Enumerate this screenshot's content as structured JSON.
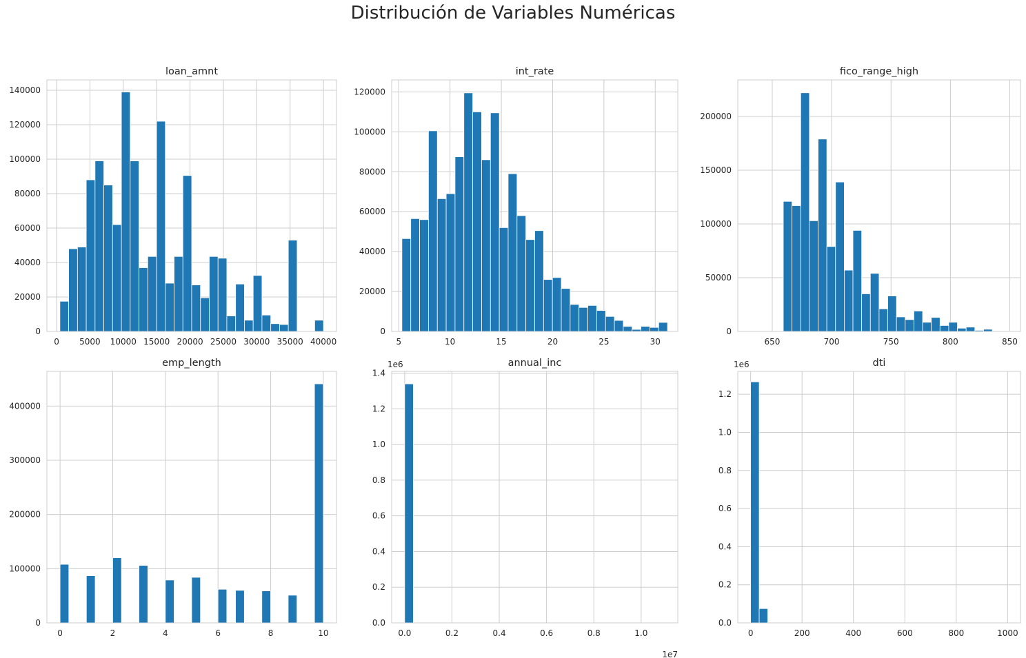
{
  "figure": {
    "suptitle": "Distribución de Variables Numéricas"
  },
  "chart_data": [
    {
      "type": "bar",
      "title": "loan_amnt",
      "xlabel": "",
      "ylabel": "",
      "xlim": [
        -1450,
        41950
      ],
      "ylim": [
        0,
        146000
      ],
      "xticks": [
        0,
        5000,
        10000,
        15000,
        20000,
        25000,
        30000,
        35000,
        40000
      ],
      "xtick_labels": [
        "0",
        "5000",
        "10000",
        "15000",
        "20000",
        "25000",
        "30000",
        "35000",
        "40000"
      ],
      "yticks": [
        0,
        20000,
        40000,
        60000,
        80000,
        100000,
        120000,
        140000
      ],
      "ytick_labels": [
        "0",
        "20000",
        "40000",
        "60000",
        "80000",
        "100000",
        "120000",
        "140000"
      ],
      "bin_start": 500,
      "bin_width": 1316.67,
      "values": [
        17500,
        48000,
        49000,
        88000,
        99000,
        85000,
        62000,
        139000,
        99000,
        37000,
        43500,
        122000,
        28000,
        43500,
        90500,
        27000,
        19500,
        43500,
        42500,
        9000,
        27500,
        6500,
        32500,
        9500,
        4500,
        4000,
        53000,
        0,
        0,
        6500
      ],
      "grid": true,
      "color": "#1f77b4"
    },
    {
      "type": "bar",
      "title": "int_rate",
      "xlabel": "",
      "ylabel": "",
      "xlim": [
        4.31,
        32.2
      ],
      "ylim": [
        0,
        126000
      ],
      "xticks": [
        5,
        10,
        15,
        20,
        25,
        30
      ],
      "xtick_labels": [
        "5",
        "10",
        "15",
        "20",
        "25",
        "30"
      ],
      "yticks": [
        0,
        20000,
        40000,
        60000,
        80000,
        100000,
        120000
      ],
      "ytick_labels": [
        "0",
        "20000",
        "40000",
        "60000",
        "80000",
        "100000",
        "120000"
      ],
      "bin_start": 5.31,
      "bin_width": 0.863,
      "values": [
        46500,
        56500,
        56000,
        100500,
        66500,
        69000,
        87500,
        119500,
        110000,
        86000,
        109500,
        52000,
        79000,
        58000,
        46000,
        50500,
        26000,
        27000,
        21500,
        13500,
        12000,
        13000,
        10500,
        7500,
        5500,
        2500,
        1000,
        2500,
        2000,
        4500
      ],
      "grid": true,
      "color": "#1f77b4"
    },
    {
      "type": "bar",
      "title": "fico_range_high",
      "xlabel": "",
      "ylabel": "",
      "xlim": [
        621,
        859
      ],
      "ylim": [
        0,
        234000
      ],
      "xticks": [
        650,
        700,
        750,
        800,
        850
      ],
      "xtick_labels": [
        "650",
        "700",
        "750",
        "800",
        "850"
      ],
      "yticks": [
        0,
        50000,
        100000,
        150000,
        200000
      ],
      "ytick_labels": [
        "0",
        "50000",
        "100000",
        "150000",
        "200000"
      ],
      "bin_start": 630,
      "bin_width": 7.33,
      "values": [
        0,
        0,
        0,
        0,
        121000,
        117000,
        222000,
        103000,
        179000,
        79000,
        139000,
        57000,
        94000,
        35000,
        54000,
        21000,
        33000,
        13500,
        11000,
        19000,
        8500,
        13000,
        5500,
        8500,
        3000,
        4000,
        1000,
        2000,
        0,
        500
      ],
      "grid": true,
      "color": "#1f77b4"
    },
    {
      "type": "bar",
      "title": "emp_length",
      "xlabel": "",
      "ylabel": "",
      "xlim": [
        -0.5,
        10.5
      ],
      "ylim": [
        0,
        464000
      ],
      "xticks": [
        0,
        2,
        4,
        6,
        8,
        10
      ],
      "xtick_labels": [
        "0",
        "2",
        "4",
        "6",
        "8",
        "10"
      ],
      "yticks": [
        0,
        100000,
        200000,
        300000,
        400000
      ],
      "ytick_labels": [
        "0",
        "100000",
        "200000",
        "300000",
        "400000"
      ],
      "bin_start": 0,
      "bin_width": 0.3333,
      "values": [
        108000,
        0,
        0,
        87000,
        0,
        0,
        120000,
        0,
        0,
        106000,
        0,
        0,
        79000,
        0,
        0,
        84000,
        0,
        0,
        62000,
        0,
        60000,
        0,
        0,
        59000,
        0,
        0,
        51000,
        0,
        0,
        441000
      ],
      "grid": true,
      "color": "#1f77b4"
    },
    {
      "type": "bar",
      "title": "annual_inc",
      "xlabel": "",
      "ylabel": "",
      "offset_label_y": "1e6",
      "offset_label_x": "1e7",
      "xlim": [
        -0.055,
        1.155
      ],
      "ylim": [
        0,
        1.41
      ],
      "xticks": [
        0.0,
        0.2,
        0.4,
        0.6,
        0.8,
        1.0
      ],
      "xtick_labels": [
        "0.0",
        "0.2",
        "0.4",
        "0.6",
        "0.8",
        "1.0"
      ],
      "yticks": [
        0.0,
        0.2,
        0.4,
        0.6,
        0.8,
        1.0,
        1.2,
        1.4
      ],
      "ytick_labels": [
        "0.0",
        "0.2",
        "0.4",
        "0.6",
        "0.8",
        "1.0",
        "1.2",
        "1.4"
      ],
      "bin_start": 0,
      "bin_width": 0.0367,
      "values": [
        1.34,
        0,
        0,
        0,
        0,
        0,
        0,
        0,
        0,
        0,
        0,
        0,
        0,
        0,
        0,
        0,
        0,
        0,
        0,
        0,
        0,
        0,
        0,
        0,
        0,
        0,
        0,
        0,
        0,
        0
      ],
      "grid": true,
      "color": "#1f77b4"
    },
    {
      "type": "bar",
      "title": "dti",
      "xlabel": "",
      "ylabel": "",
      "offset_label_y": "1e6",
      "xlim": [
        -50,
        1050
      ],
      "ylim": [
        0,
        1.32
      ],
      "xticks": [
        0,
        200,
        400,
        600,
        800,
        1000
      ],
      "xtick_labels": [
        "0",
        "200",
        "400",
        "600",
        "800",
        "1000"
      ],
      "yticks": [
        0.0,
        0.2,
        0.4,
        0.6,
        0.8,
        1.0,
        1.2
      ],
      "ytick_labels": [
        "0.0",
        "0.2",
        "0.4",
        "0.6",
        "0.8",
        "1.0",
        "1.2"
      ],
      "bin_start": 0,
      "bin_width": 33.33,
      "values": [
        1.265,
        0.075,
        0,
        0,
        0,
        0,
        0,
        0,
        0,
        0,
        0,
        0,
        0,
        0,
        0,
        0,
        0,
        0,
        0,
        0,
        0,
        0,
        0,
        0,
        0,
        0,
        0,
        0,
        0,
        0
      ],
      "grid": true,
      "color": "#1f77b4"
    }
  ]
}
